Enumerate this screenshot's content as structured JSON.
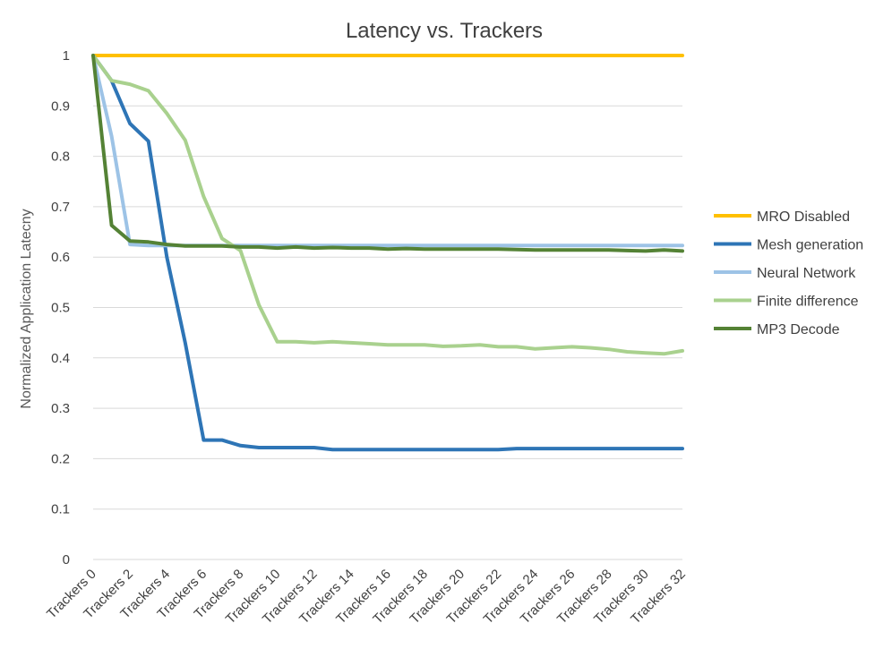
{
  "chart_data": {
    "type": "line",
    "title": "Latency vs. Trackers",
    "xlabel": "",
    "ylabel": "Normalized Application Latecny",
    "ylim": [
      0,
      1
    ],
    "yticks": [
      "0",
      "0.1",
      "0.2",
      "0.3",
      "0.4",
      "0.5",
      "0.6",
      "0.7",
      "0.8",
      "0.9",
      "1"
    ],
    "grid": true,
    "legend_position": "right",
    "x": [
      "Trackers 0",
      "Trackers 1",
      "Trackers 2",
      "Trackers 3",
      "Trackers 4",
      "Trackers 5",
      "Trackers 6",
      "Trackers 7",
      "Trackers 8",
      "Trackers 9",
      "Trackers 10",
      "Trackers 11",
      "Trackers 12",
      "Trackers 13",
      "Trackers 14",
      "Trackers 15",
      "Trackers 16",
      "Trackers 17",
      "Trackers 18",
      "Trackers 19",
      "Trackers 20",
      "Trackers 21",
      "Trackers 22",
      "Trackers 23",
      "Trackers 24",
      "Trackers 25",
      "Trackers 26",
      "Trackers 27",
      "Trackers 28",
      "Trackers 29",
      "Trackers 30",
      "Trackers 31",
      "Trackers 32"
    ],
    "x_tick_labels": [
      "Trackers 0",
      "Trackers 2",
      "Trackers 4",
      "Trackers 6",
      "Trackers 8",
      "Trackers 10",
      "Trackers 12",
      "Trackers 14",
      "Trackers 16",
      "Trackers 18",
      "Trackers 20",
      "Trackers 22",
      "Trackers 24",
      "Trackers 26",
      "Trackers 28",
      "Trackers 30",
      "Trackers 32"
    ],
    "series": [
      {
        "name": "MRO Disabled",
        "color": "#FFC000",
        "values": [
          1,
          1,
          1,
          1,
          1,
          1,
          1,
          1,
          1,
          1,
          1,
          1,
          1,
          1,
          1,
          1,
          1,
          1,
          1,
          1,
          1,
          1,
          1,
          1,
          1,
          1,
          1,
          1,
          1,
          1,
          1,
          1,
          1
        ]
      },
      {
        "name": "Mesh generation",
        "color": "#2E75B6",
        "values": [
          1,
          0.95,
          0.865,
          0.83,
          0.6,
          0.43,
          0.237,
          0.237,
          0.226,
          0.222,
          0.222,
          0.222,
          0.222,
          0.218,
          0.218,
          0.218,
          0.218,
          0.218,
          0.218,
          0.218,
          0.218,
          0.218,
          0.218,
          0.22,
          0.22,
          0.22,
          0.22,
          0.22,
          0.22,
          0.22,
          0.22,
          0.22,
          0.22
        ]
      },
      {
        "name": "Neural Network",
        "color": "#9DC3E6",
        "values": [
          1,
          0.84,
          0.625,
          0.623,
          0.623,
          0.623,
          0.623,
          0.623,
          0.623,
          0.623,
          0.623,
          0.623,
          0.623,
          0.623,
          0.623,
          0.623,
          0.623,
          0.623,
          0.623,
          0.623,
          0.623,
          0.623,
          0.623,
          0.623,
          0.623,
          0.623,
          0.623,
          0.623,
          0.623,
          0.623,
          0.623,
          0.623,
          0.623
        ]
      },
      {
        "name": "Finite difference",
        "color": "#A9D18E",
        "values": [
          1,
          0.95,
          0.943,
          0.93,
          0.885,
          0.832,
          0.72,
          0.637,
          0.613,
          0.505,
          0.432,
          0.432,
          0.43,
          0.432,
          0.43,
          0.428,
          0.426,
          0.426,
          0.426,
          0.423,
          0.424,
          0.426,
          0.422,
          0.422,
          0.418,
          0.42,
          0.422,
          0.42,
          0.417,
          0.412,
          0.41,
          0.408,
          0.414
        ]
      },
      {
        "name": "MP3 Decode",
        "color": "#548235",
        "values": [
          1,
          0.663,
          0.632,
          0.63,
          0.625,
          0.622,
          0.622,
          0.622,
          0.62,
          0.62,
          0.618,
          0.62,
          0.618,
          0.619,
          0.618,
          0.618,
          0.616,
          0.617,
          0.616,
          0.616,
          0.616,
          0.616,
          0.616,
          0.615,
          0.614,
          0.614,
          0.614,
          0.614,
          0.614,
          0.613,
          0.612,
          0.614,
          0.612
        ]
      }
    ]
  }
}
